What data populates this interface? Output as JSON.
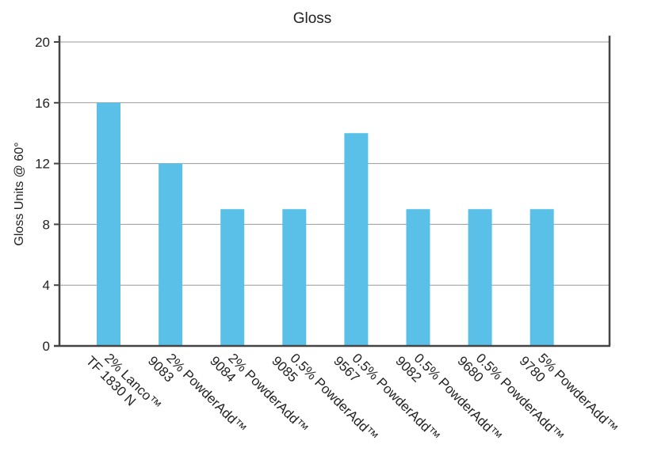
{
  "chart_data": {
    "type": "bar",
    "title": "Gloss",
    "ylabel": "Gloss Units @ 60°",
    "xlabel": "",
    "ylim": [
      0,
      20
    ],
    "yticks": [
      0,
      4,
      8,
      12,
      16,
      20
    ],
    "grid": true,
    "categories": [
      [
        "2% Lanco™",
        "TF 1830 N"
      ],
      [
        "2% PowderAdd™",
        "9083"
      ],
      [
        "2% PowderAdd™",
        "9084"
      ],
      [
        "0.5% PowderAdd™",
        "9085"
      ],
      [
        "0.5% PowderAdd™",
        "9567"
      ],
      [
        "0.5% PowderAdd™",
        "9082"
      ],
      [
        "0.5% PowderAdd™",
        "9680"
      ],
      [
        "5% PowderAdd™",
        "9780"
      ]
    ],
    "values": [
      16,
      12,
      9,
      9,
      14,
      9,
      9,
      9
    ],
    "bar_color": "#5bc0e8",
    "axis_color": "#444444",
    "grid_color": "#999999"
  }
}
